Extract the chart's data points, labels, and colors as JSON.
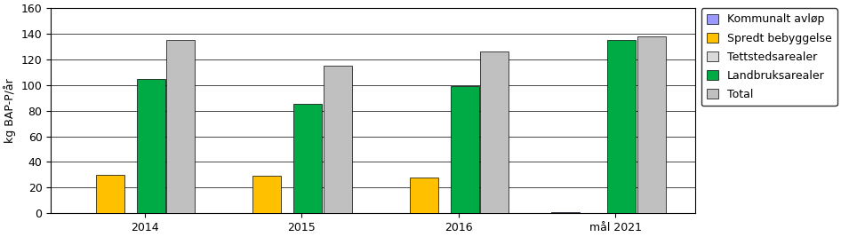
{
  "categories": [
    "2014",
    "2015",
    "2016",
    "mål 2021"
  ],
  "series": {
    "Kommunalt avløp": [
      0,
      0,
      0,
      1
    ],
    "Spredt bebyggelse": [
      30,
      29,
      28,
      0
    ],
    "Tettstedsarealer": [
      0,
      0,
      0,
      0
    ],
    "Landbruksarealer": [
      105,
      85,
      99,
      135
    ],
    "Total": [
      135,
      115,
      126,
      138
    ]
  },
  "colors": {
    "Kommunalt avløp": "#9999FF",
    "Spredt bebyggelse": "#FFC000",
    "Tettstedsarealer": "#D9D9D9",
    "Landbruksarealer": "#00AA44",
    "Total": "#C0C0C0"
  },
  "ylabel": "kg BAP-P/år",
  "ylim": [
    0,
    160
  ],
  "yticks": [
    0,
    20,
    40,
    60,
    80,
    100,
    120,
    140,
    160
  ],
  "figsize": [
    9.46,
    2.67
  ],
  "dpi": 100
}
